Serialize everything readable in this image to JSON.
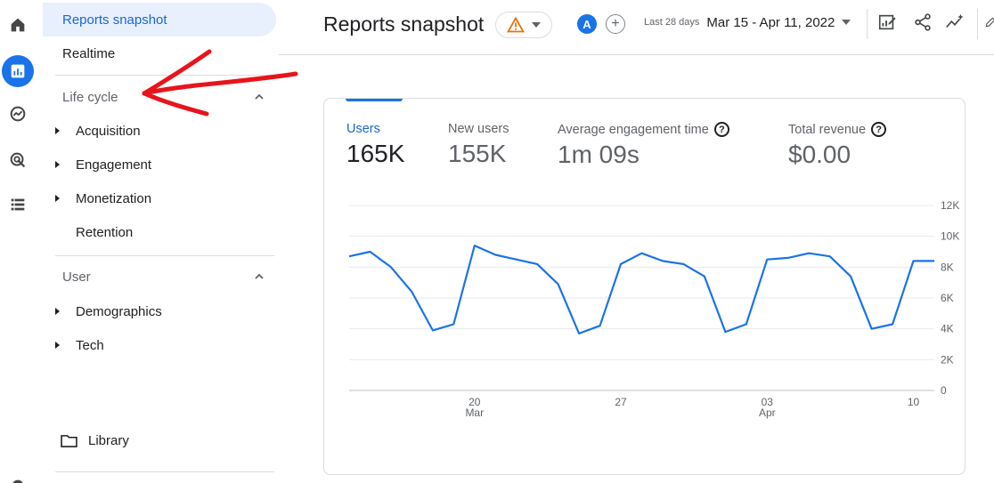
{
  "rail": {
    "items": [
      {
        "icon": "home-icon",
        "active": false
      },
      {
        "icon": "reports-icon",
        "active": true
      },
      {
        "icon": "explore-icon",
        "active": false
      },
      {
        "icon": "advertising-icon",
        "active": false
      },
      {
        "icon": "configure-icon",
        "active": false
      },
      {
        "icon": "settings-icon",
        "active": false
      }
    ],
    "active_color": "#1a73e8"
  },
  "nav": {
    "reports_snapshot": "Reports snapshot",
    "realtime": "Realtime",
    "lifecycle": {
      "label": "Life cycle",
      "items": [
        "Acquisition",
        "Engagement",
        "Monetization",
        "Retention"
      ]
    },
    "user": {
      "label": "User",
      "items": [
        "Demographics",
        "Tech"
      ]
    },
    "library": "Library"
  },
  "header": {
    "title": "Reports snapshot",
    "avatar_letter": "A",
    "add_compare": "+",
    "date_label": "Last 28 days",
    "date_value": "Mar 15 - Apr 11, 2022",
    "icons": [
      "customize-report-icon",
      "share-icon",
      "insights-icon"
    ]
  },
  "card": {
    "metrics": [
      {
        "label": "Users",
        "value": "165K",
        "help": false,
        "selected": true
      },
      {
        "label": "New users",
        "value": "155K",
        "help": false,
        "selected": false
      },
      {
        "label": "Average engagement time",
        "value": "1m 09s",
        "help": true,
        "selected": false
      },
      {
        "label": "Total revenue",
        "value": "$0.00",
        "help": true,
        "selected": false
      }
    ],
    "help_glyph": "?"
  },
  "chart_data": {
    "type": "line",
    "y_ticks": [
      "12K",
      "10K",
      "8K",
      "6K",
      "4K",
      "2K",
      "0"
    ],
    "y_tick_values": [
      12000,
      10000,
      8000,
      6000,
      4000,
      2000,
      0
    ],
    "ylim": [
      0,
      12000
    ],
    "x_ticks": [
      {
        "day": 6,
        "label": "20",
        "sub": "Mar"
      },
      {
        "day": 13,
        "label": "27",
        "sub": ""
      },
      {
        "day": 20,
        "label": "03",
        "sub": "Apr"
      },
      {
        "day": 27,
        "label": "10",
        "sub": ""
      }
    ],
    "xlim": [
      0,
      28
    ],
    "series": [
      {
        "color": "#1a73e8",
        "x": [
          0,
          1,
          2,
          3,
          4,
          5,
          6,
          7,
          8,
          9,
          10,
          11,
          12,
          13,
          14,
          15,
          16,
          17,
          18,
          19,
          20,
          21,
          22,
          23,
          24,
          25,
          26,
          27,
          28
        ],
        "values": [
          8700,
          9000,
          8000,
          6400,
          3900,
          4300,
          9400,
          8800,
          8500,
          8200,
          6900,
          3700,
          4200,
          8200,
          8900,
          8400,
          8200,
          7400,
          3800,
          4300,
          8500,
          8600,
          8900,
          8700,
          7400,
          4000,
          4300,
          8400,
          8400
        ]
      }
    ],
    "grid": true
  },
  "annotation_color": "#e8141b"
}
